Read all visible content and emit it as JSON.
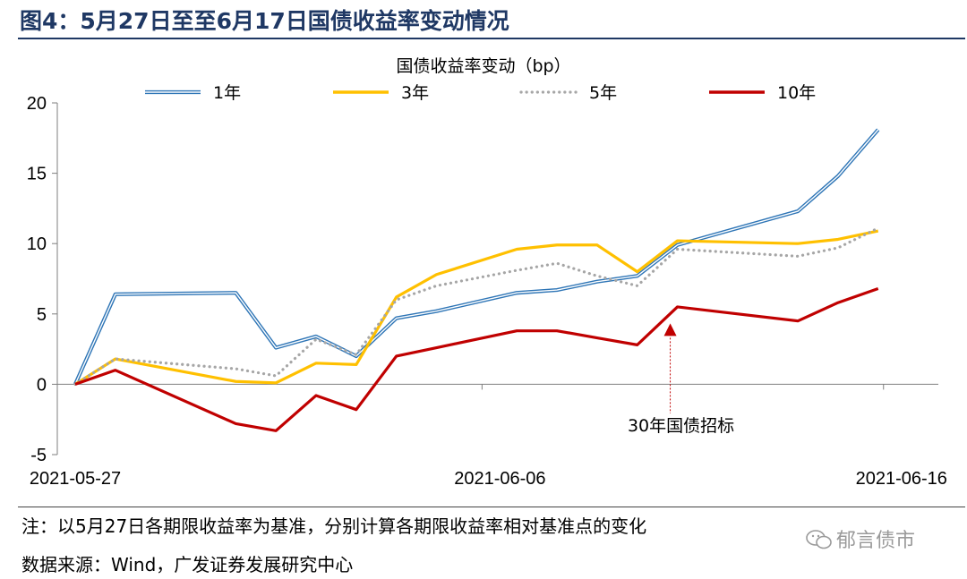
{
  "figure_title": "图4：5月27日至至6月17日国债收益率变动情况",
  "note": "注：以5月27日各期限收益率为基准，分别计算各期限收益率相对基准点的变化",
  "source": "数据来源：Wind，广发证券发展研究中心",
  "watermark": "郁言债市",
  "chart_data": {
    "type": "line",
    "title": "国债收益率变动（bp）",
    "xlabel": "",
    "ylabel": "",
    "ylim": [
      -5,
      20
    ],
    "yticks": [
      "20",
      "15",
      "10",
      "5",
      "0",
      "-5"
    ],
    "ytick_values": [
      20,
      15,
      10,
      5,
      0,
      -5
    ],
    "x_tick_labels": [
      "2021-05-27",
      "2021-06-06",
      "2021-06-16"
    ],
    "x_tick_days": [
      0,
      10,
      20
    ],
    "x_days": [
      0,
      1,
      4,
      5,
      6,
      7,
      8,
      9,
      11,
      12,
      13,
      14,
      15,
      18,
      19,
      20
    ],
    "legend_position": "top",
    "series": [
      {
        "name": "1年",
        "color": "#2e75b6",
        "style": "double",
        "values": [
          0,
          6.4,
          6.5,
          2.6,
          3.4,
          2.0,
          4.7,
          5.2,
          6.5,
          6.7,
          7.3,
          7.7,
          9.9,
          12.3,
          14.8,
          18.1
        ]
      },
      {
        "name": "3年",
        "color": "#ffc000",
        "style": "solid",
        "values": [
          0,
          1.8,
          0.2,
          0.1,
          1.5,
          1.4,
          6.2,
          7.8,
          9.6,
          9.9,
          9.9,
          8.0,
          10.2,
          10.0,
          10.3,
          10.9
        ]
      },
      {
        "name": "5年",
        "color": "#a6a6a6",
        "style": "dotted",
        "values": [
          0,
          1.8,
          1.1,
          0.6,
          3.2,
          2.1,
          6.0,
          7.0,
          8.1,
          8.6,
          7.7,
          7.0,
          9.6,
          9.1,
          9.7,
          11.1
        ]
      },
      {
        "name": "10年",
        "color": "#c00000",
        "style": "solid",
        "values": [
          0,
          1.0,
          -2.8,
          -3.3,
          -0.8,
          -1.8,
          2.0,
          2.6,
          3.8,
          3.8,
          3.3,
          2.8,
          5.5,
          4.5,
          5.8,
          6.8
        ]
      }
    ],
    "annotation": {
      "text": "30年国债招标",
      "x_day": 15,
      "y_value": 4.2
    }
  }
}
